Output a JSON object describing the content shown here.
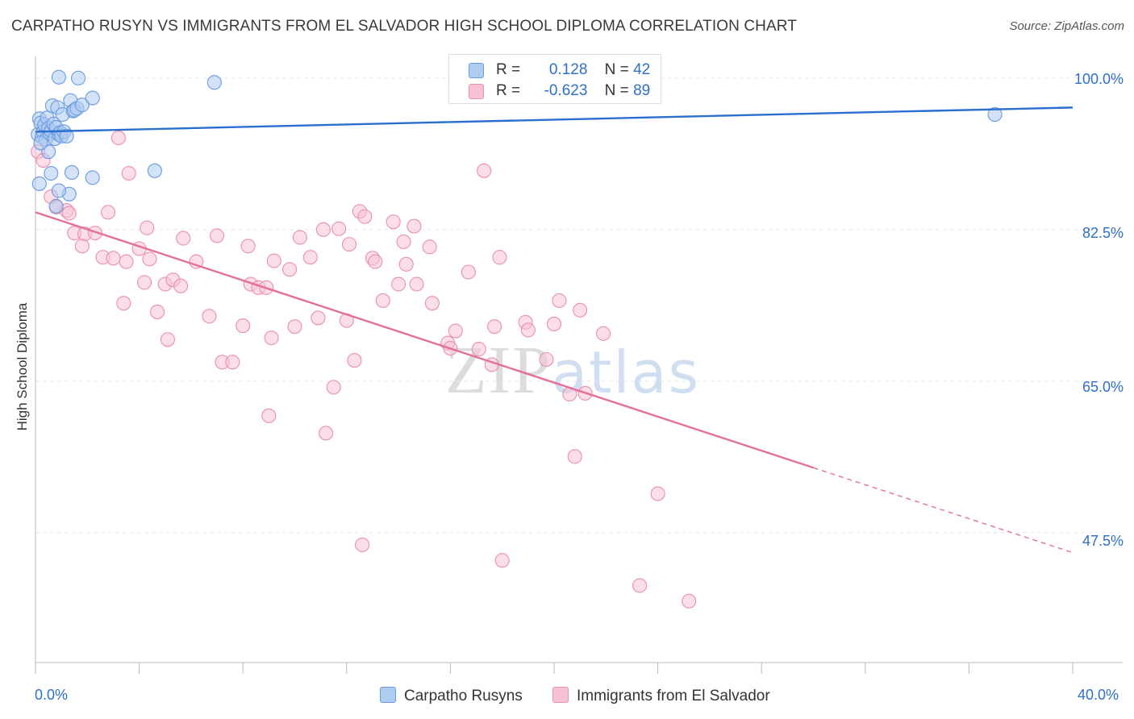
{
  "header": {
    "title": "CARPATHO RUSYN VS IMMIGRANTS FROM EL SALVADOR HIGH SCHOOL DIPLOMA CORRELATION CHART",
    "source": "Source: ZipAtlas.com"
  },
  "watermark": {
    "zip": "ZIP",
    "atlas": "atlas"
  },
  "legend_top": {
    "rows": [
      {
        "r_label": "R =",
        "r_value": "0.128",
        "n_label": "N =",
        "n_value": "42"
      },
      {
        "r_label": "R =",
        "r_value": "-0.623",
        "n_label": "N =",
        "n_value": "89"
      }
    ]
  },
  "legend_bottom": {
    "items": [
      {
        "label": "Carpatho Rusyns"
      },
      {
        "label": "Immigrants from El Salvador"
      }
    ]
  },
  "colors": {
    "blue_fill": "#aecbf0",
    "blue_stroke": "#6a9be0",
    "blue_line": "#2a6fd0",
    "pink_fill": "#f7c3d3",
    "pink_stroke": "#ea8fae",
    "pink_line": "#e2709a",
    "tick_text": "#2f6fc9",
    "grid": "#e6e6e6"
  },
  "chart_data": {
    "type": "scatter",
    "title": "CARPATHO RUSYN VS IMMIGRANTS FROM EL SALVADOR HIGH SCHOOL DIPLOMA CORRELATION CHART",
    "xlabel": "",
    "ylabel": "High School Diploma",
    "xlim": [
      0,
      40
    ],
    "ylim": [
      32.5,
      102.5
    ],
    "x_tick_labels": [
      "0.0%",
      "40.0%"
    ],
    "y_ticks": [
      47.5,
      65.0,
      82.5,
      100.0
    ],
    "y_tick_labels": [
      "47.5%",
      "65.0%",
      "82.5%",
      "100.0%"
    ],
    "grid": "horizontal dashed",
    "legend_position": "top-center",
    "series": [
      {
        "name": "Carpatho Rusyns",
        "color": "blue",
        "r": 0.128,
        "n": 42,
        "trend": {
          "x": [
            0,
            40
          ],
          "y": [
            93.8,
            96.6
          ]
        },
        "points": [
          [
            0.1,
            93.5
          ],
          [
            0.15,
            95.3
          ],
          [
            0.2,
            94.8
          ],
          [
            0.25,
            93.2
          ],
          [
            0.3,
            93.8
          ],
          [
            0.35,
            94.6
          ],
          [
            0.4,
            92.9
          ],
          [
            0.45,
            95.4
          ],
          [
            0.5,
            94.2
          ],
          [
            0.55,
            93.6
          ],
          [
            0.6,
            93.9
          ],
          [
            0.65,
            96.8
          ],
          [
            0.7,
            94.7
          ],
          [
            0.75,
            93.0
          ],
          [
            0.8,
            94.3
          ],
          [
            0.85,
            96.6
          ],
          [
            0.9,
            93.5
          ],
          [
            0.95,
            93.7
          ],
          [
            1.0,
            93.3
          ],
          [
            1.05,
            95.8
          ],
          [
            1.1,
            93.8
          ],
          [
            1.2,
            93.3
          ],
          [
            1.35,
            97.4
          ],
          [
            1.4,
            89.1
          ],
          [
            1.45,
            96.2
          ],
          [
            1.5,
            96.3
          ],
          [
            1.6,
            96.5
          ],
          [
            1.8,
            96.9
          ],
          [
            2.2,
            97.7
          ],
          [
            0.9,
            100.1
          ],
          [
            1.65,
            100.0
          ],
          [
            6.9,
            99.5
          ],
          [
            4.6,
            89.3
          ],
          [
            2.2,
            88.5
          ],
          [
            1.3,
            86.6
          ],
          [
            0.9,
            87.0
          ],
          [
            0.8,
            85.2
          ],
          [
            0.5,
            91.5
          ],
          [
            0.2,
            92.5
          ],
          [
            0.15,
            87.8
          ],
          [
            0.6,
            89.0
          ],
          [
            37.0,
            95.8
          ]
        ]
      },
      {
        "name": "Immigrants from El Salvador",
        "color": "pink",
        "r": -0.623,
        "n": 89,
        "trend": {
          "x": [
            0,
            30
          ],
          "y": [
            84.5,
            55.0
          ],
          "dashed_to": {
            "x": 40,
            "y": 45.2
          }
        },
        "points": [
          [
            0.1,
            91.5
          ],
          [
            0.3,
            90.5
          ],
          [
            0.6,
            86.3
          ],
          [
            0.8,
            85.1
          ],
          [
            1.2,
            84.7
          ],
          [
            1.3,
            84.4
          ],
          [
            1.5,
            82.1
          ],
          [
            1.9,
            82.0
          ],
          [
            2.3,
            82.1
          ],
          [
            1.8,
            80.6
          ],
          [
            2.6,
            79.3
          ],
          [
            3.0,
            79.2
          ],
          [
            3.5,
            78.8
          ],
          [
            4.0,
            80.3
          ],
          [
            4.4,
            79.1
          ],
          [
            5.7,
            81.5
          ],
          [
            6.2,
            78.8
          ],
          [
            7.0,
            81.8
          ],
          [
            4.2,
            76.4
          ],
          [
            5.0,
            76.2
          ],
          [
            5.3,
            76.7
          ],
          [
            5.6,
            76.0
          ],
          [
            6.7,
            72.5
          ],
          [
            5.1,
            69.8
          ],
          [
            4.7,
            73.0
          ],
          [
            3.4,
            74.0
          ],
          [
            2.8,
            84.5
          ],
          [
            4.3,
            82.7
          ],
          [
            8.3,
            76.2
          ],
          [
            8.6,
            75.8
          ],
          [
            8.9,
            75.8
          ],
          [
            8.2,
            80.6
          ],
          [
            9.2,
            78.9
          ],
          [
            10.2,
            81.6
          ],
          [
            9.8,
            77.9
          ],
          [
            10.6,
            79.3
          ],
          [
            11.1,
            82.5
          ],
          [
            10.0,
            71.3
          ],
          [
            10.9,
            72.3
          ],
          [
            8.0,
            71.4
          ],
          [
            7.2,
            67.2
          ],
          [
            7.6,
            67.2
          ],
          [
            9.1,
            70.0
          ],
          [
            9.0,
            61.0
          ],
          [
            11.5,
            64.3
          ],
          [
            11.2,
            59.0
          ],
          [
            11.7,
            82.6
          ],
          [
            12.0,
            72.0
          ],
          [
            12.3,
            67.4
          ],
          [
            12.1,
            80.8
          ],
          [
            12.5,
            84.6
          ],
          [
            12.7,
            84.0
          ],
          [
            13.0,
            79.2
          ],
          [
            13.1,
            78.8
          ],
          [
            13.4,
            74.3
          ],
          [
            13.8,
            83.4
          ],
          [
            14.0,
            76.2
          ],
          [
            14.2,
            81.1
          ],
          [
            14.3,
            78.5
          ],
          [
            14.7,
            76.2
          ],
          [
            14.6,
            82.9
          ],
          [
            15.2,
            80.5
          ],
          [
            15.3,
            74.0
          ],
          [
            15.9,
            69.4
          ],
          [
            16.2,
            70.8
          ],
          [
            16.0,
            68.8
          ],
          [
            16.7,
            77.6
          ],
          [
            17.1,
            68.7
          ],
          [
            17.3,
            89.3
          ],
          [
            17.6,
            66.9
          ],
          [
            17.7,
            71.3
          ],
          [
            17.9,
            79.3
          ],
          [
            18.9,
            71.8
          ],
          [
            19.0,
            70.9
          ],
          [
            19.7,
            67.5
          ],
          [
            20.0,
            71.6
          ],
          [
            20.2,
            74.3
          ],
          [
            20.6,
            63.5
          ],
          [
            21.2,
            63.6
          ],
          [
            21.0,
            73.2
          ],
          [
            21.9,
            70.5
          ],
          [
            20.8,
            56.3
          ],
          [
            24.0,
            52.0
          ],
          [
            12.6,
            46.1
          ],
          [
            18.0,
            44.3
          ],
          [
            23.3,
            41.4
          ],
          [
            25.2,
            39.6
          ],
          [
            3.2,
            93.1
          ],
          [
            3.6,
            89.0
          ]
        ]
      }
    ]
  }
}
